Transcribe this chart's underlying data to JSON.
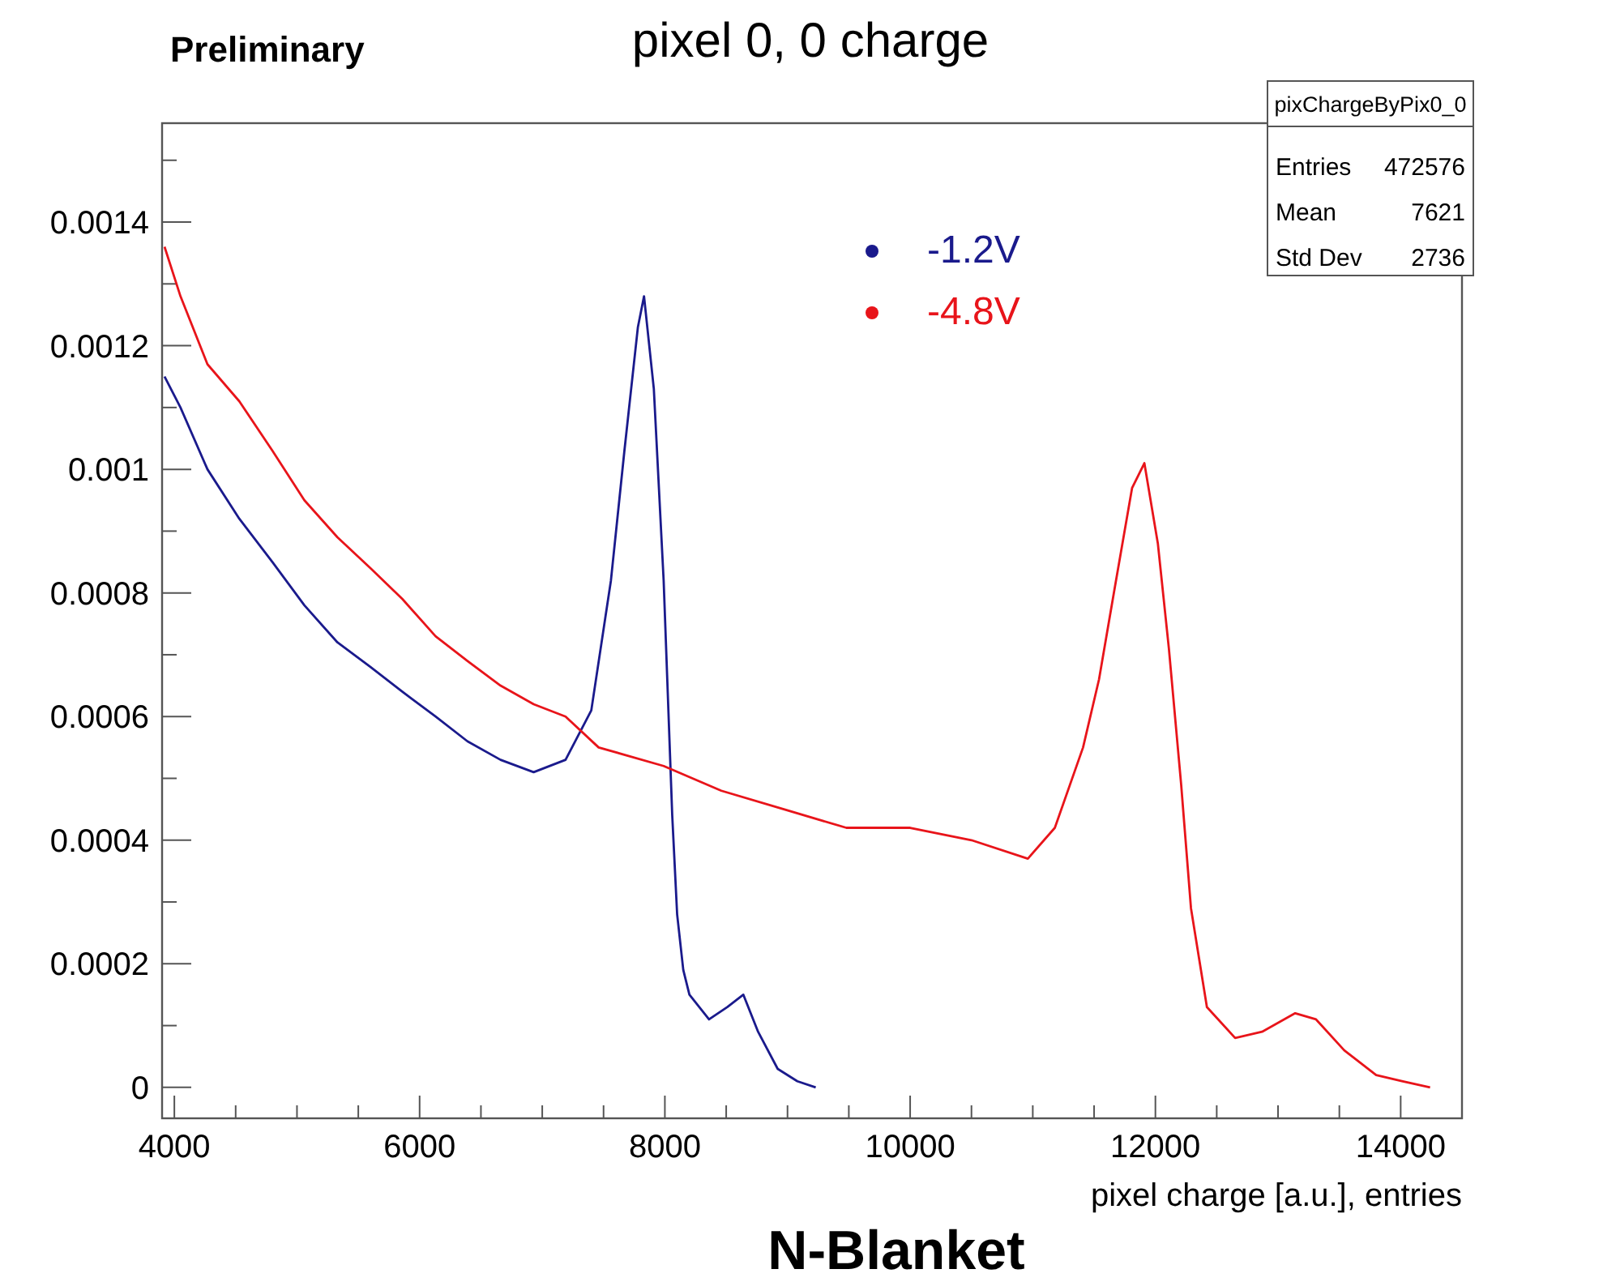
{
  "chart_data": {
    "type": "line",
    "title": "pixel 0, 0 charge",
    "xlabel": "pixel charge [a.u.], entries",
    "annotations": [
      "Preliminary",
      "pixChargeByPix0_0",
      "Entries 472576",
      "Mean 7621",
      "Std Dev 2736",
      "N-Blanket"
    ],
    "xlim": [
      3900,
      14500
    ],
    "ylim": [
      -5e-05,
      0.00156
    ],
    "xticks": [
      4000,
      {
        "value": 4500,
        "label": null
      },
      {
        "value": 5000,
        "label": null
      },
      {
        "value": 5500,
        "label": null
      },
      6000,
      {
        "value": 6500,
        "label": null
      },
      {
        "value": 7000,
        "label": null
      },
      {
        "value": 7500,
        "label": null
      },
      8000,
      {
        "value": 8500,
        "label": null
      },
      {
        "value": 9000,
        "label": null
      },
      {
        "value": 9500,
        "label": null
      },
      10000,
      {
        "value": 10500,
        "label": null
      },
      {
        "value": 11000,
        "label": null
      },
      {
        "value": 11500,
        "label": null
      },
      12000,
      {
        "value": 12500,
        "label": null
      },
      {
        "value": 13000,
        "label": null
      },
      {
        "value": 13500,
        "label": null
      },
      14000
    ],
    "yticks": [
      0,
      {
        "value": 0.0001,
        "label": null
      },
      0.0002,
      {
        "value": 0.0003,
        "label": null
      },
      0.0004,
      {
        "value": 0.0005,
        "label": null
      },
      0.0006,
      {
        "value": 0.0007,
        "label": null
      },
      0.0008,
      {
        "value": 0.0009,
        "label": null
      },
      0.001,
      {
        "value": 0.0011,
        "label": null
      },
      0.0012,
      {
        "value": 0.0013,
        "label": null
      },
      0.0014,
      {
        "value": 0.0015,
        "label": null
      }
    ],
    "grid": false,
    "legend": "top",
    "marker": "none",
    "line_style": "solid",
    "series": [
      {
        "name": "-1.2V",
        "color": "#1a1a8c",
        "x": [
          3920,
          4050,
          4270,
          4530,
          4800,
          5060,
          5330,
          5600,
          5860,
          6130,
          6390,
          6660,
          6930,
          7190,
          7400,
          7560,
          7670,
          7780,
          7830,
          7910,
          7990,
          8060,
          8100,
          8150,
          8200,
          8360,
          8510,
          8640,
          8760,
          8920,
          9080,
          9230
        ],
        "values": [
          0.00115,
          0.0011,
          0.001,
          0.00092,
          0.00085,
          0.00078,
          0.00072,
          0.00068,
          0.00064,
          0.0006,
          0.00056,
          0.00053,
          0.00051,
          0.00053,
          0.00061,
          0.00082,
          0.00103,
          0.00123,
          0.00128,
          0.00113,
          0.00082,
          0.00044,
          0.00028,
          0.00019,
          0.00015,
          0.00011,
          0.00013,
          0.00015,
          9e-05,
          3e-05,
          1e-05,
          0
        ]
      },
      {
        "name": "-4.8V",
        "color": "#e8141a",
        "x": [
          3920,
          4050,
          4270,
          4530,
          4800,
          5060,
          5330,
          5600,
          5860,
          6130,
          6390,
          6660,
          6930,
          7190,
          7460,
          7990,
          8460,
          8970,
          9480,
          10000,
          10500,
          10960,
          11180,
          11410,
          11540,
          11670,
          11810,
          11910,
          12020,
          12110,
          12210,
          12290,
          12420,
          12650,
          12870,
          13140,
          13310,
          13540,
          13800,
          14010,
          14240
        ],
        "values": [
          0.00136,
          0.00128,
          0.00117,
          0.00111,
          0.00103,
          0.00095,
          0.00089,
          0.00084,
          0.00079,
          0.00073,
          0.00069,
          0.00065,
          0.00062,
          0.0006,
          0.00055,
          0.00052,
          0.00048,
          0.00045,
          0.00042,
          0.00042,
          0.0004,
          0.00037,
          0.00042,
          0.00055,
          0.00066,
          0.00081,
          0.00097,
          0.00101,
          0.00088,
          0.00071,
          0.00049,
          0.00029,
          0.00013,
          8e-05,
          9e-05,
          0.00012,
          0.00011,
          6e-05,
          2e-05,
          1e-05,
          0
        ]
      }
    ]
  }
}
